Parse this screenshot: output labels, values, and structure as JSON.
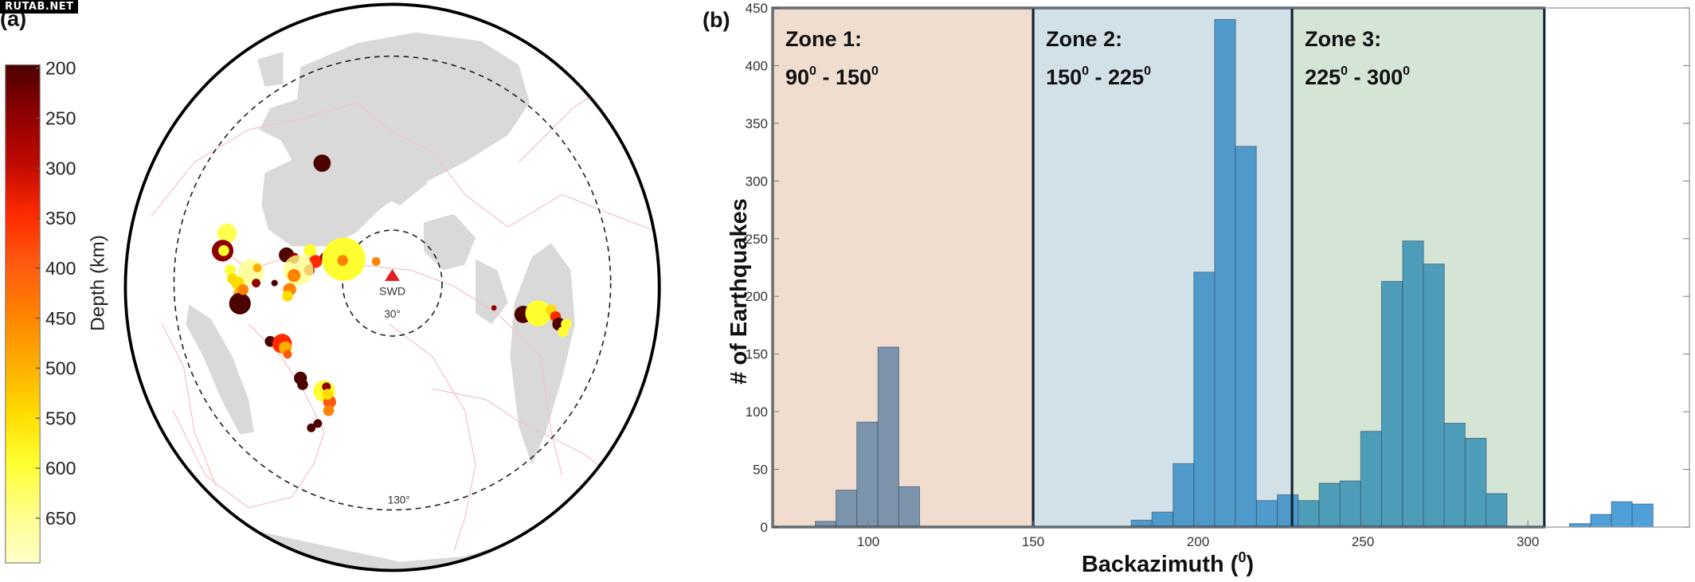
{
  "watermark": "RUTAB.NET",
  "panel_a": {
    "label": "(a)",
    "colorbar": {
      "title": "Depth (km)",
      "ticks": [
        "200",
        "250",
        "300",
        "350",
        "400",
        "450",
        "500",
        "550",
        "600",
        "650"
      ],
      "colors": [
        "#4d0000",
        "#8e0000",
        "#c00a00",
        "#ff2a00",
        "#ff5a10",
        "#ff8200",
        "#ffad00",
        "#ffdc00",
        "#ffff30",
        "#ffff8a",
        "#ffffc8"
      ]
    },
    "station": {
      "name": "SWD",
      "color": "#e02020"
    },
    "inner_ring_label": "30°",
    "outer_ring_label": "130°",
    "land_color": "#d9d9d9",
    "plate_boundary_color": "#f2c4c4"
  },
  "panel_b": {
    "label": "(b)",
    "zones": [
      {
        "title": "Zone 1:",
        "range_label": [
          "90",
          "0",
          " - 150",
          "0"
        ],
        "from": 71,
        "to": 150,
        "color": "#f1ddd0"
      },
      {
        "title": "Zone 2:",
        "range_label": [
          "150",
          "0",
          " - 225",
          "0"
        ],
        "from": 150,
        "to": 228.5,
        "color": "#d2e1e8"
      },
      {
        "title": "Zone 3:",
        "range_label": [
          "225",
          "0",
          " - 300",
          "0"
        ],
        "from": 228.5,
        "to": 305,
        "color": "#d4e4d5"
      }
    ]
  },
  "chart_data": {
    "type": "bar",
    "title": "",
    "xlabel": "Backazimuth (",
    "xlabel_sup": "0",
    "xlabel_end": ")",
    "ylabel": "# of Earthquakes",
    "xlim": [
      71,
      349
    ],
    "ylim": [
      0,
      450
    ],
    "xticks": [
      100,
      150,
      200,
      250,
      300
    ],
    "yticks": [
      0,
      50,
      100,
      150,
      200,
      250,
      300,
      350,
      400,
      450
    ],
    "grid": false,
    "bin_width": 6.33,
    "bar_color": "#4f9fd8",
    "bins": [
      {
        "x": 87.1,
        "count": 5
      },
      {
        "x": 93.4,
        "count": 32
      },
      {
        "x": 99.7,
        "count": 91
      },
      {
        "x": 106.1,
        "count": 156
      },
      {
        "x": 112.4,
        "count": 35
      },
      {
        "x": 182.9,
        "count": 6
      },
      {
        "x": 189.2,
        "count": 13
      },
      {
        "x": 195.6,
        "count": 55
      },
      {
        "x": 201.9,
        "count": 221
      },
      {
        "x": 208.2,
        "count": 440
      },
      {
        "x": 214.5,
        "count": 330
      },
      {
        "x": 220.9,
        "count": 23
      },
      {
        "x": 227.2,
        "count": 28
      },
      {
        "x": 233.5,
        "count": 23
      },
      {
        "x": 239.9,
        "count": 38
      },
      {
        "x": 246.2,
        "count": 40
      },
      {
        "x": 252.5,
        "count": 83
      },
      {
        "x": 258.8,
        "count": 213
      },
      {
        "x": 265.2,
        "count": 248
      },
      {
        "x": 271.5,
        "count": 228
      },
      {
        "x": 277.8,
        "count": 90
      },
      {
        "x": 284.2,
        "count": 77
      },
      {
        "x": 290.5,
        "count": 29
      },
      {
        "x": 315.8,
        "count": 3
      },
      {
        "x": 322.2,
        "count": 11
      },
      {
        "x": 328.5,
        "count": 22
      },
      {
        "x": 334.8,
        "count": 20
      }
    ]
  }
}
